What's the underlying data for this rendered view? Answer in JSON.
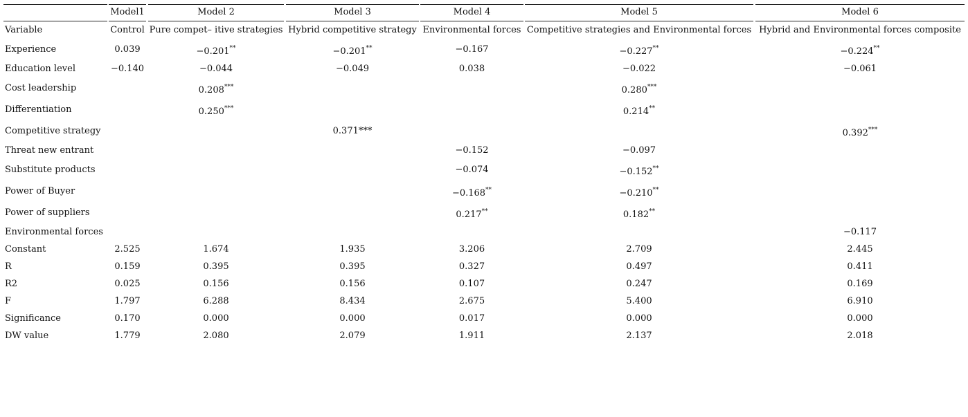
{
  "table": {
    "header": [
      "Model1",
      "Model 2",
      "Model 3",
      "Model 4",
      "Model 5",
      "Model 6"
    ],
    "rows": [
      {
        "label": "Variable",
        "cells": [
          "Control",
          "Pure compet– itive strategies",
          "Hybrid competitive strategy",
          "Environmental forces",
          "Competitive strategies and Environmental forces",
          "Hybrid and Environmental forces composite"
        ]
      },
      {
        "label": "Experience",
        "cells": [
          "0.039",
          {
            "text": "−0.201",
            "sup": "**"
          },
          {
            "text": "−0.201",
            "sup": "**"
          },
          "−0.167",
          {
            "text": "−0.227",
            "sup": "**"
          },
          {
            "text": "−0.224",
            "sup": "**"
          }
        ]
      },
      {
        "label": "Education level",
        "cells": [
          "−0.140",
          "−0.044",
          "−0.049",
          "0.038",
          "−0.022",
          "−0.061"
        ]
      },
      {
        "label": "Cost leadership",
        "cells": [
          null,
          {
            "text": "0.208",
            "sup": "***"
          },
          null,
          null,
          {
            "text": "0.280",
            "sup": "***"
          },
          null
        ]
      },
      {
        "label": "Differentiation",
        "cells": [
          null,
          {
            "text": "0.250",
            "sup": "***"
          },
          null,
          null,
          {
            "text": "0.214",
            "sup": "**"
          },
          null
        ]
      },
      {
        "label": "Competitive strategy",
        "cells": [
          null,
          null,
          "0.371***",
          null,
          null,
          {
            "text": "0.392",
            "sup": "***"
          }
        ]
      },
      {
        "label": "Threat new entrant",
        "cells": [
          null,
          null,
          null,
          "−0.152",
          "−0.097",
          null
        ]
      },
      {
        "label": "Substitute products",
        "cells": [
          null,
          null,
          null,
          "−0.074",
          {
            "text": "−0.152",
            "sup": "**"
          },
          null
        ]
      },
      {
        "label": "Power of Buyer",
        "cells": [
          null,
          null,
          null,
          {
            "text": "−0.168",
            "sup": "**"
          },
          {
            "text": "−0.210",
            "sup": "**"
          },
          null
        ]
      },
      {
        "label": "Power of suppliers",
        "cells": [
          null,
          null,
          null,
          {
            "text": "0.217",
            "sup": "**"
          },
          {
            "text": "0.182",
            "sup": "**"
          },
          null
        ]
      },
      {
        "label": "Environmental forces",
        "cells": [
          null,
          null,
          null,
          null,
          null,
          "−0.117"
        ]
      },
      {
        "label": "Constant",
        "cells": [
          "2.525",
          "1.674",
          "1.935",
          "3.206",
          "2.709",
          "2.445"
        ]
      },
      {
        "label": "R",
        "cells": [
          "0.159",
          "0.395",
          "0.395",
          "0.327",
          "0.497",
          "0.411"
        ]
      },
      {
        "label": "R2",
        "cells": [
          "0.025",
          "0.156",
          "0.156",
          "0.107",
          "0.247",
          "0.169"
        ]
      },
      {
        "label": "F",
        "cells": [
          "1.797",
          "6.288",
          "8.434",
          "2.675",
          "5.400",
          "6.910"
        ]
      },
      {
        "label": "Significance",
        "cells": [
          "0.170",
          "0.000",
          "0.000",
          "0.017",
          "0.000",
          "0.000"
        ]
      },
      {
        "label": "DW value",
        "cells": [
          "1.779",
          "2.080",
          "2.079",
          "1.911",
          "2.137",
          "2.018"
        ]
      }
    ]
  }
}
